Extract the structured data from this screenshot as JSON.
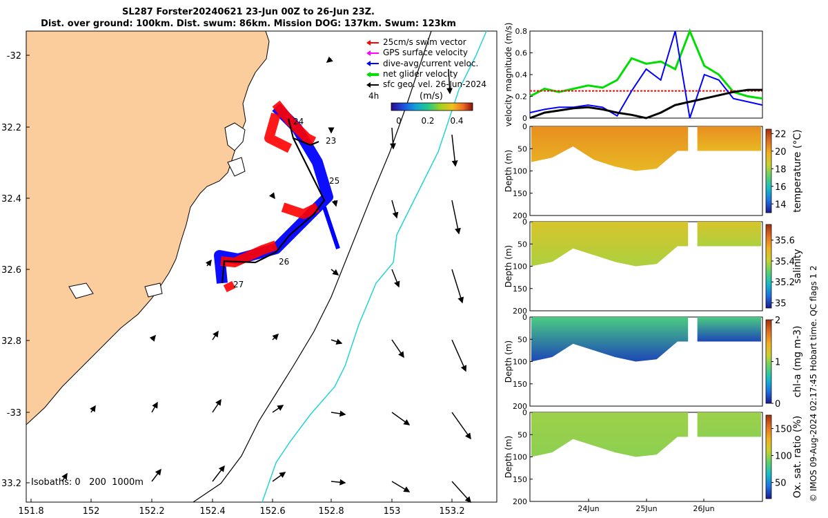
{
  "header": {
    "title_line1": "SL287 Forster20240621 23-Jun 00Z to 26-Jun 23Z.",
    "title_line2": "Dist. over ground: 100km. Dist. swum: 86km. Mission DOG: 137km. Swum: 123km"
  },
  "legend": {
    "items": [
      {
        "label": "25cm/s swim vector",
        "color": "#ff0000"
      },
      {
        "label": "GPS surface velocity",
        "color": "#ff00ff"
      },
      {
        "label": "dive-avg current veloc.",
        "color": "#0000ff"
      },
      {
        "label": "net glider velocity",
        "color": "#00dd00"
      },
      {
        "label": "sfc geo. vel. 26-Jun-2024",
        "color": "#000000"
      }
    ],
    "interval": "4h",
    "colorbar_label": "(m/s)",
    "colorbar_ticks": [
      "0",
      "0.2",
      "0.4"
    ]
  },
  "map": {
    "isobaths_label": "Isobaths: 0   200  1000m",
    "lon_ticks": [
      "151.8",
      "152",
      "152.2",
      "152.4",
      "152.6",
      "152.8",
      "153",
      "153.2"
    ],
    "lat_ticks": [
      "-32",
      "32.2",
      "32.4",
      "32.6",
      "32.8",
      "-33",
      "33.2"
    ],
    "track_labels": [
      "24",
      "23",
      "25",
      "26",
      "27"
    ]
  },
  "side_note": "© IMOS 09-Aug-2024 02:17:45 Hobart time. QC flags 1  2",
  "panels": {
    "depth_label": "Depth (m)",
    "depth_ticks": [
      "0",
      "50",
      "100",
      "150",
      "200"
    ],
    "date_ticks": [
      "24Jun",
      "25Jun",
      "26Jun"
    ]
  },
  "chart_data": [
    {
      "type": "line",
      "title": "",
      "ylabel": "velocity magnitude (m/s)",
      "ylim": [
        0,
        0.8
      ],
      "yticks": [
        "0",
        "0.2",
        "0.4",
        "0.6",
        "0.8"
      ],
      "x": [
        0,
        0.25,
        0.5,
        0.75,
        1.0,
        1.25,
        1.5,
        1.75,
        2.0,
        2.25,
        2.5,
        2.75,
        3.0,
        3.25,
        3.5,
        3.75,
        4.0
      ],
      "series": [
        {
          "name": "net glider velocity",
          "color": "#00dd00",
          "values": [
            0.2,
            0.27,
            0.24,
            0.27,
            0.3,
            0.28,
            0.35,
            0.55,
            0.5,
            0.52,
            0.45,
            0.8,
            0.48,
            0.4,
            0.24,
            0.2,
            0.18
          ]
        },
        {
          "name": "25cm/s swim vector",
          "color": "#ff0000",
          "values": [
            0.25,
            0.25,
            0.25,
            0.25,
            0.25,
            0.25,
            0.25,
            0.25,
            0.25,
            0.25,
            0.25,
            0.25,
            0.25,
            0.25,
            0.25,
            0.25,
            0.25
          ]
        },
        {
          "name": "dive-avg current veloc.",
          "color": "#0000ff",
          "values": [
            0.05,
            0.08,
            0.1,
            0.1,
            0.12,
            0.1,
            0.02,
            0.25,
            0.45,
            0.35,
            0.8,
            0.0,
            0.4,
            0.35,
            0.18,
            0.15,
            0.12
          ]
        },
        {
          "name": "sfc geo. vel.",
          "color": "#000000",
          "values": [
            0.0,
            0.05,
            0.07,
            0.09,
            0.1,
            0.08,
            0.05,
            0.03,
            0.0,
            0.05,
            0.12,
            0.15,
            0.18,
            0.21,
            0.24,
            0.26,
            0.26
          ]
        }
      ]
    },
    {
      "type": "heatmap",
      "title": "temperature",
      "ylabel": "Depth (m)",
      "colorbar_label": "temperature (°C)",
      "colorbar_ticks": [
        "22",
        "20",
        "18",
        "16",
        "14"
      ],
      "range": [
        13,
        22.5
      ],
      "ylim": [
        200,
        0
      ],
      "x_breaks": [
        0.68,
        0.72
      ],
      "depth_profile": [
        80,
        70,
        45,
        75,
        90,
        100,
        95,
        55,
        55,
        55,
        55,
        55
      ],
      "surface_value": 20.5,
      "bottom_value": 19.5
    },
    {
      "type": "heatmap",
      "title": "salinity",
      "ylabel": "Depth (m)",
      "colorbar_label": "salinity",
      "colorbar_ticks": [
        "35.6",
        "35.4",
        "35.2",
        "35"
      ],
      "range": [
        34.95,
        35.75
      ],
      "ylim": [
        200,
        0
      ],
      "x_breaks": [
        0.68,
        0.72
      ],
      "depth_profile": [
        100,
        90,
        60,
        75,
        90,
        100,
        95,
        55,
        55,
        55,
        55,
        55
      ],
      "surface_value": 35.45,
      "bottom_value": 35.38
    },
    {
      "type": "heatmap",
      "title": "chl-a",
      "ylabel": "Depth (m)",
      "colorbar_label": "chl-a (mg m-3)",
      "colorbar_ticks": [
        "2",
        "1",
        "0"
      ],
      "range": [
        0,
        2
      ],
      "ylim": [
        200,
        0
      ],
      "x_breaks": [
        0.68,
        0.72
      ],
      "depth_profile": [
        100,
        90,
        60,
        75,
        90,
        100,
        95,
        55,
        55,
        55,
        55,
        55
      ],
      "surface_value": 0.8,
      "bottom_value": 0.15
    },
    {
      "type": "heatmap",
      "title": "Ox. sat. ratio",
      "ylabel": "Depth (m)",
      "colorbar_label": "Ox. sat. ratio (%)",
      "colorbar_ticks": [
        "150",
        "100",
        "50"
      ],
      "range": [
        20,
        175
      ],
      "ylim": [
        200,
        0
      ],
      "x_breaks": [
        0.68,
        0.72
      ],
      "depth_profile": [
        100,
        90,
        60,
        75,
        90,
        100,
        95,
        55,
        55,
        55,
        55,
        55
      ],
      "surface_value": 100,
      "bottom_value": 97
    }
  ]
}
